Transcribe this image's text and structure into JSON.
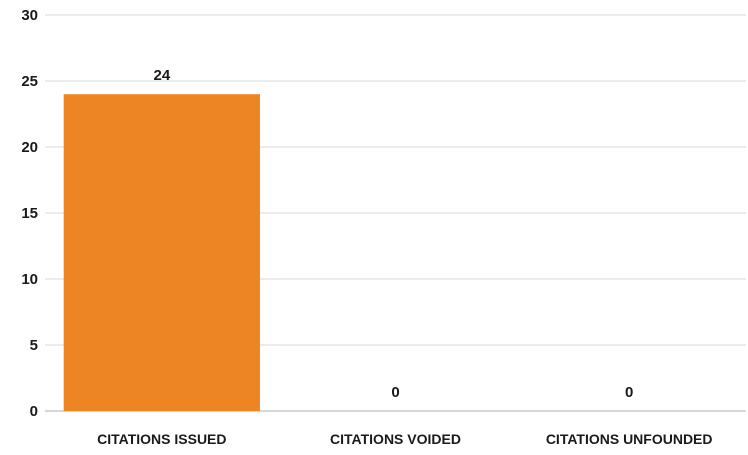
{
  "chart_data": {
    "type": "bar",
    "categories": [
      "CITATIONS ISSUED",
      "CITATIONS VOIDED",
      "CITATIONS UNFOUNDED"
    ],
    "values": [
      24,
      0,
      0
    ],
    "data_labels": [
      "24",
      "0",
      "0"
    ],
    "title": "",
    "xlabel": "",
    "ylabel": "",
    "ylim": [
      0,
      30
    ],
    "yticks": [
      0,
      5,
      10,
      15,
      20,
      25,
      30
    ],
    "ytick_labels": [
      "0",
      "5",
      "10",
      "15",
      "20",
      "25",
      "30"
    ],
    "grid": true,
    "legend": "none",
    "bar_color": "#EE8524"
  }
}
